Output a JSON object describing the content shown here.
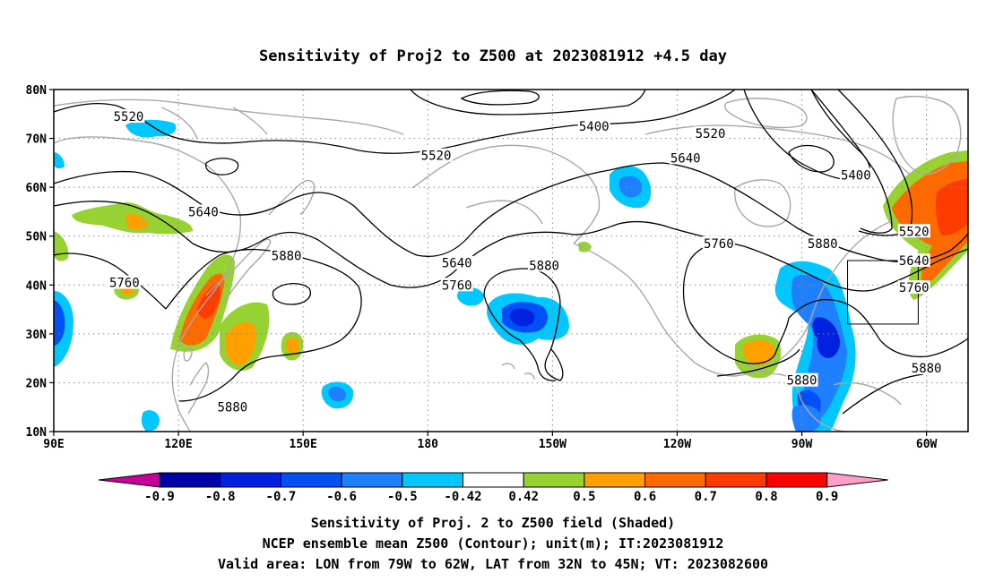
{
  "title": "Sensitivity of Proj2 to Z500 at 2023081912 +4.5 day",
  "map": {
    "lon_labels": [
      "90E",
      "120E",
      "150E",
      "180",
      "150W",
      "120W",
      "90W",
      "60W"
    ],
    "lat_labels": [
      "80N",
      "70N",
      "60N",
      "50N",
      "40N",
      "30N",
      "20N",
      "10N"
    ],
    "lon_range_deg_east": [
      90,
      310
    ],
    "lat_range": [
      10,
      80
    ],
    "grid": "dotted",
    "coastline_color": "#a8a8a8"
  },
  "contour_labels": [
    {
      "text": "5520",
      "lon": 108,
      "lat": 74.5
    },
    {
      "text": "5400",
      "lon": 220,
      "lat": 72.5
    },
    {
      "text": "5520",
      "lon": 182,
      "lat": 66.5
    },
    {
      "text": "5520",
      "lon": 248,
      "lat": 71
    },
    {
      "text": "5640",
      "lon": 242,
      "lat": 66
    },
    {
      "text": "5400",
      "lon": 283,
      "lat": 62.5
    },
    {
      "text": "5640",
      "lon": 126,
      "lat": 55
    },
    {
      "text": "5760",
      "lon": 250,
      "lat": 48.5
    },
    {
      "text": "5880",
      "lon": 275,
      "lat": 48.5
    },
    {
      "text": "5520",
      "lon": 297,
      "lat": 51
    },
    {
      "text": "5640",
      "lon": 297,
      "lat": 45
    },
    {
      "text": "5880",
      "lon": 146,
      "lat": 46
    },
    {
      "text": "5640",
      "lon": 187,
      "lat": 44.5
    },
    {
      "text": "5880",
      "lon": 208,
      "lat": 44
    },
    {
      "text": "5760",
      "lon": 107,
      "lat": 40.5
    },
    {
      "text": "5760",
      "lon": 187,
      "lat": 40
    },
    {
      "text": "5760",
      "lon": 297,
      "lat": 39.5
    },
    {
      "text": "5880",
      "lon": 300,
      "lat": 23
    },
    {
      "text": "5880",
      "lon": 270,
      "lat": 20.5
    },
    {
      "text": "5880",
      "lon": 133,
      "lat": 15
    }
  ],
  "valid_box": {
    "lon": [
      281,
      298
    ],
    "lat": [
      32,
      45
    ]
  },
  "colorbar": {
    "labels": [
      "-0.9",
      "-0.8",
      "-0.7",
      "-0.6",
      "-0.5",
      "-0.42",
      "0.42",
      "0.5",
      "0.6",
      "0.7",
      "0.8",
      "0.9"
    ],
    "colors": [
      "#0000a8",
      "#0022e0",
      "#0050f5",
      "#1e80ff",
      "#00c8ff",
      "#ffffff",
      "#96d232",
      "#ffa000",
      "#ff6a00",
      "#ff3c00",
      "#ff0000"
    ],
    "under_color": "#c8009a",
    "over_color": "#ff9ec8"
  },
  "footer": {
    "line1": "Sensitivity of Proj. 2 to Z500 field (Shaded)",
    "line2": "NCEP ensemble mean Z500 (Contour); unit(m); IT:2023081912",
    "line3": "Valid area: LON from 79W to 62W, LAT from 32N to 45N; VT: 2023082600"
  }
}
